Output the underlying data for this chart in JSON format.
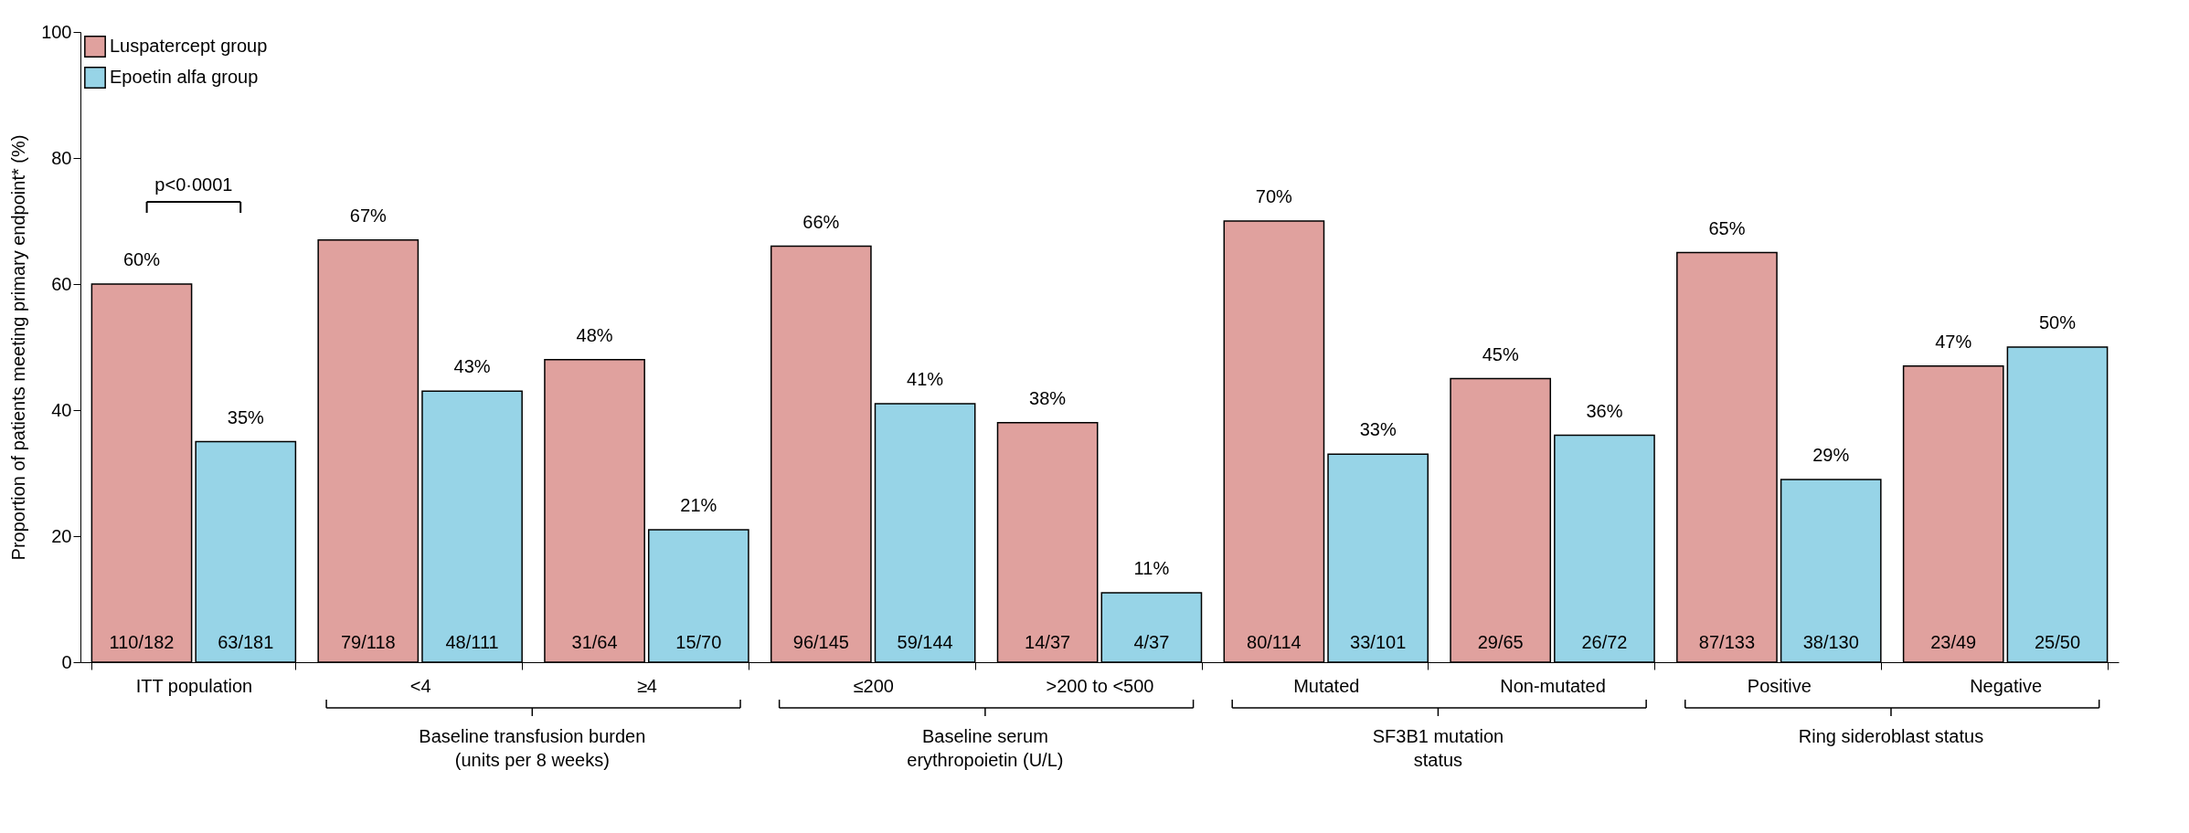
{
  "chart_data": {
    "type": "bar",
    "ylabel": "Proportion of patients meeting primary endpoint* (%)",
    "categories": [
      "ITT population",
      "<4",
      "≥4",
      "≤200",
      ">200 to <500",
      "Mutated",
      "Non-mutated",
      "Positive",
      "Negative"
    ],
    "series": [
      {
        "name": "Luspatercept group",
        "color": "#e0a19e",
        "values": [
          60,
          67,
          48,
          66,
          38,
          70,
          45,
          65,
          47
        ],
        "value_labels": [
          "60%",
          "67%",
          "48%",
          "66%",
          "38%",
          "70%",
          "45%",
          "65%",
          "47%"
        ]
      },
      {
        "name": "Epoetin alfa group",
        "color": "#97d4e7",
        "values": [
          35,
          43,
          21,
          41,
          11,
          33,
          36,
          29,
          50
        ],
        "value_labels": [
          "35%",
          "43%",
          "21%",
          "41%",
          "11%",
          "33%",
          "36%",
          "29%",
          "50%"
        ]
      }
    ],
    "ylim": [
      0,
      100
    ],
    "yticks": [
      0,
      20,
      40,
      60,
      80,
      100
    ],
    "grid": false,
    "legend": "top left",
    "annotations": [
      "p<0·0001",
      {
        "text": "110/182",
        "x": "ITT population",
        "y": 3
      },
      {
        "text": "63/181",
        "x": "ITT population",
        "y": 3
      },
      {
        "text": "79/118",
        "x": "<4",
        "y": 3
      },
      {
        "text": "48/111",
        "x": "<4",
        "y": 3
      },
      {
        "text": "31/64",
        "x": "≥4",
        "y": 3
      },
      {
        "text": "15/70",
        "x": "≥4",
        "y": 3
      },
      {
        "text": "96/145",
        "x": "≤200",
        "y": 3
      },
      {
        "text": "59/144",
        "x": "≤200",
        "y": 3
      },
      {
        "text": "14/37",
        "x": ">200 to <500",
        "y": 3
      },
      {
        "text": "4/37",
        "x": ">200 to <500",
        "y": 3
      },
      {
        "text": "80/114",
        "x": "Mutated",
        "y": 3
      },
      {
        "text": "33/101",
        "x": "Mutated",
        "y": 3
      },
      {
        "text": "29/65",
        "x": "Non-mutated",
        "y": 3
      },
      {
        "text": "26/72",
        "x": "Non-mutated",
        "y": 3
      },
      {
        "text": "87/133",
        "x": "Positive",
        "y": 3
      },
      {
        "text": "38/130",
        "x": "Positive",
        "y": 3
      },
      {
        "text": "23/49",
        "x": "Negative",
        "y": 3
      },
      {
        "text": "25/50",
        "x": "Negative",
        "y": 3
      },
      "Baseline transfusion burden\n(units per 8 weeks)",
      "Baseline serum\nerythropoietin (U/L)",
      "SF3B1 mutation\nstatus",
      "Ring sideroblast status"
    ]
  }
}
